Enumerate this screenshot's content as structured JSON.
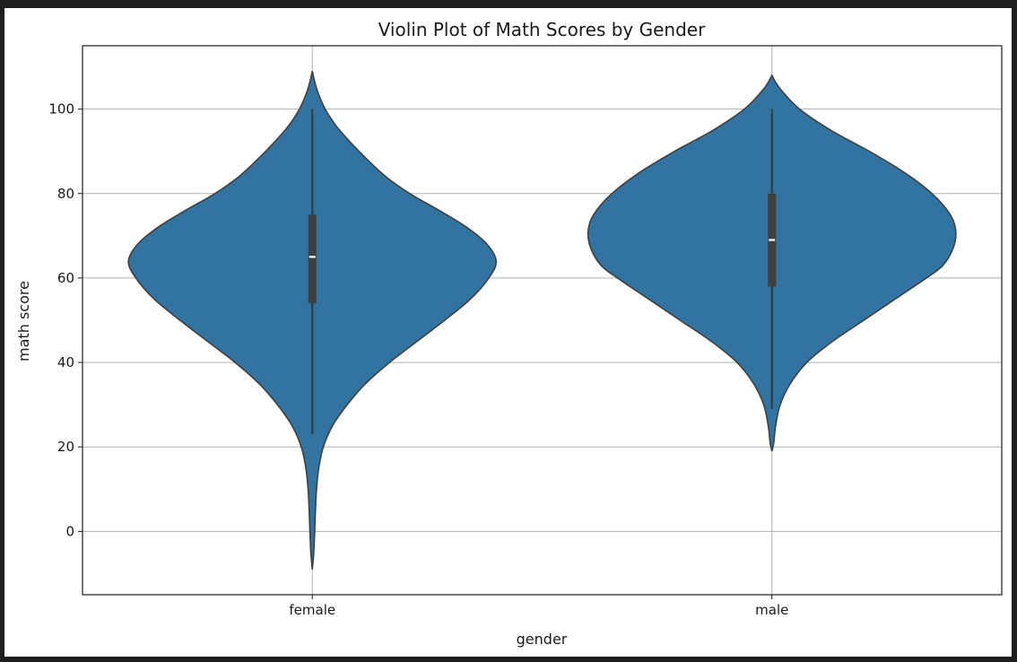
{
  "chart_data": {
    "type": "violin",
    "title": "Violin Plot of Math Scores by Gender",
    "xlabel": "gender",
    "ylabel": "math score",
    "categories": [
      "female",
      "male"
    ],
    "ylim": [
      -15,
      115
    ],
    "yticks": [
      0,
      20,
      40,
      60,
      80,
      100
    ],
    "grid": true,
    "color": "#3274a1",
    "edge_color": "#3f3f3f",
    "box_color": "#3f3f3f",
    "median_color": "#ffffff",
    "violins": [
      {
        "category": "female",
        "density_profile": [
          [
            -9,
            0.0
          ],
          [
            -5,
            0.008
          ],
          [
            0,
            0.013
          ],
          [
            5,
            0.017
          ],
          [
            10,
            0.023
          ],
          [
            15,
            0.035
          ],
          [
            20,
            0.06
          ],
          [
            25,
            0.11
          ],
          [
            30,
            0.19
          ],
          [
            35,
            0.29
          ],
          [
            40,
            0.42
          ],
          [
            45,
            0.57
          ],
          [
            50,
            0.72
          ],
          [
            55,
            0.86
          ],
          [
            60,
            0.96
          ],
          [
            64,
            1.0
          ],
          [
            68,
            0.95
          ],
          [
            72,
            0.84
          ],
          [
            76,
            0.69
          ],
          [
            80,
            0.53
          ],
          [
            84,
            0.4
          ],
          [
            88,
            0.3
          ],
          [
            92,
            0.21
          ],
          [
            96,
            0.13
          ],
          [
            100,
            0.07
          ],
          [
            104,
            0.03
          ],
          [
            107,
            0.01
          ],
          [
            109,
            0.0
          ]
        ],
        "whisker_low": 23,
        "q1": 54,
        "median": 65,
        "q3": 75,
        "whisker_high": 100
      },
      {
        "category": "male",
        "density_profile": [
          [
            19,
            0.0
          ],
          [
            21,
            0.01
          ],
          [
            25,
            0.02
          ],
          [
            30,
            0.045
          ],
          [
            35,
            0.1
          ],
          [
            40,
            0.19
          ],
          [
            45,
            0.33
          ],
          [
            50,
            0.5
          ],
          [
            55,
            0.67
          ],
          [
            60,
            0.84
          ],
          [
            63,
            0.93
          ],
          [
            67,
            0.985
          ],
          [
            71,
            1.0
          ],
          [
            75,
            0.97
          ],
          [
            80,
            0.87
          ],
          [
            85,
            0.72
          ],
          [
            90,
            0.53
          ],
          [
            95,
            0.32
          ],
          [
            100,
            0.15
          ],
          [
            104,
            0.06
          ],
          [
            106,
            0.025
          ],
          [
            108,
            0.0
          ]
        ],
        "whisker_low": 29,
        "q1": 58,
        "median": 69,
        "q3": 80,
        "whisker_high": 100
      }
    ]
  }
}
